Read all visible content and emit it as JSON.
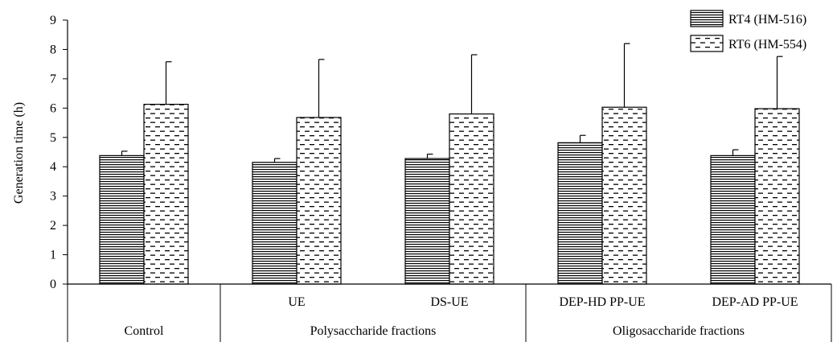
{
  "chart_data": {
    "type": "bar",
    "title": "",
    "ylabel": "Generation time (h)",
    "xlabel": "",
    "ylim": [
      0,
      9
    ],
    "yticks": [
      0,
      1,
      2,
      3,
      4,
      5,
      6,
      7,
      8,
      9
    ],
    "grid": false,
    "legend_position": "top-right",
    "categories": [
      "Control",
      "UE",
      "DS-UE",
      "DEP-HD PP-UE",
      "DEP-AD PP-UE"
    ],
    "groups": [
      {
        "label": "Control",
        "categories": [
          0
        ]
      },
      {
        "label": "Polysaccharide fractions",
        "categories": [
          1,
          2
        ]
      },
      {
        "label": "Oligosaccharide fractions",
        "categories": [
          3,
          4
        ]
      }
    ],
    "series": [
      {
        "name": "RT4 (HM-516)",
        "pattern": "horizontal-lines",
        "values": [
          4.38,
          4.15,
          4.28,
          4.82,
          4.38
        ],
        "errors": [
          0.15,
          0.13,
          0.15,
          0.25,
          0.2
        ]
      },
      {
        "name": "RT6 (HM-554)",
        "pattern": "dashes",
        "values": [
          6.13,
          5.68,
          5.8,
          6.03,
          5.98
        ],
        "errors": [
          1.45,
          1.98,
          2.02,
          2.17,
          1.78
        ]
      }
    ]
  }
}
